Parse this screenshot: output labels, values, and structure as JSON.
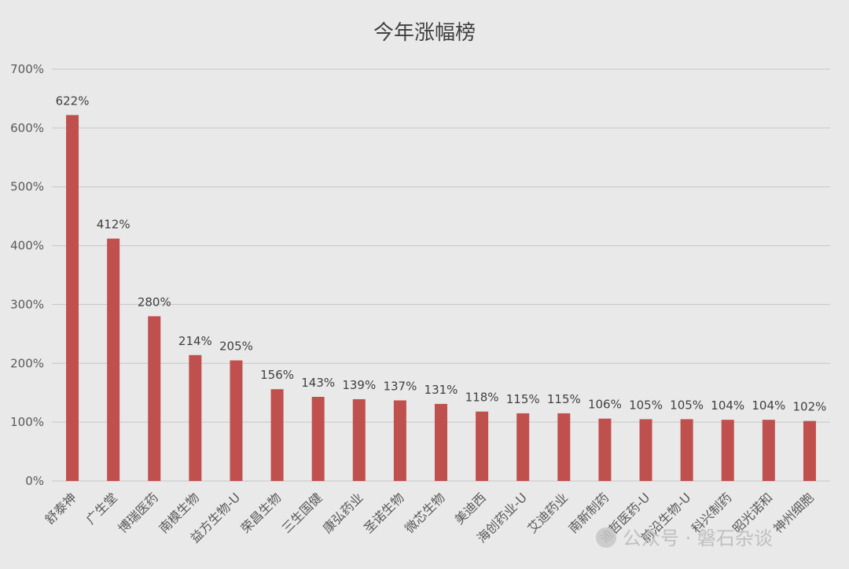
{
  "chart_data": {
    "type": "bar",
    "title": "今年涨幅榜",
    "categories": [
      "舒泰神",
      "广生堂",
      "博瑞医药",
      "南模生物",
      "益方生物-U",
      "荣昌生物",
      "三生国健",
      "康弘药业",
      "圣诺生物",
      "微芯生物",
      "美迪西",
      "海创药业-U",
      "艾迪药业",
      "南新制药",
      "迪哲医药-U",
      "前沿生物-U",
      "科兴制药",
      "昭光诺和",
      "神州细胞"
    ],
    "values": [
      622,
      412,
      280,
      214,
      205,
      156,
      143,
      139,
      137,
      131,
      118,
      115,
      115,
      106,
      105,
      105,
      104,
      104,
      102
    ],
    "data_labels": [
      "622%",
      "412%",
      "280%",
      "214%",
      "205%",
      "156%",
      "143%",
      "139%",
      "137%",
      "131%",
      "118%",
      "115%",
      "115%",
      "106%",
      "105%",
      "105%",
      "104%",
      "104%",
      "102%"
    ],
    "y_ticks": [
      "0%",
      "100%",
      "200%",
      "300%",
      "400%",
      "500%",
      "600%",
      "700%"
    ],
    "ylim": [
      0,
      700
    ],
    "grid": true,
    "bar_color": "#c0504d",
    "xlabel": "",
    "ylabel": ""
  },
  "watermark": {
    "text": "公众号 · 磐石杂谈"
  }
}
